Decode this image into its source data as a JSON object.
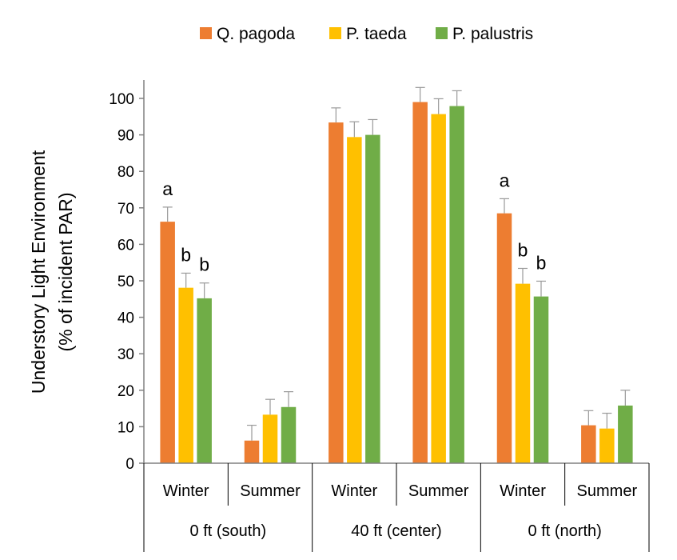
{
  "chart_data": {
    "type": "bar",
    "ylabel_line1": "Understory Light Environment",
    "ylabel_line2": "(% of incident PAR)",
    "ylim": [
      0,
      105
    ],
    "yticks": [
      0,
      10,
      20,
      30,
      40,
      50,
      60,
      70,
      80,
      90,
      100
    ],
    "grid": false,
    "legend_position": "top",
    "groups": [
      {
        "label": "0 ft (south)",
        "seasons": [
          "Winter",
          "Summer"
        ]
      },
      {
        "label": "40 ft (center)",
        "seasons": [
          "Winter",
          "Summer"
        ]
      },
      {
        "label": "0 ft (north)",
        "seasons": [
          "Winter",
          "Summer"
        ]
      }
    ],
    "series": [
      {
        "name": "Q. pagoda",
        "color": "#ED7D31",
        "values": [
          66.2,
          6.2,
          93.4,
          99.0,
          68.5,
          10.4
        ],
        "errors": [
          4.0,
          4.2,
          4.0,
          4.0,
          4.0,
          4.0
        ]
      },
      {
        "name": "P. taeda",
        "color": "#FFC000",
        "values": [
          48.1,
          13.3,
          89.4,
          95.7,
          49.2,
          9.5
        ],
        "errors": [
          4.0,
          4.2,
          4.2,
          4.2,
          4.2,
          4.2
        ]
      },
      {
        "name": "P. palustris",
        "color": "#70AD47",
        "values": [
          45.2,
          15.4,
          90.0,
          97.9,
          45.7,
          15.8
        ],
        "errors": [
          4.2,
          4.2,
          4.2,
          4.2,
          4.2,
          4.2
        ]
      }
    ],
    "significance_labels": [
      [
        "a",
        "",
        "",
        "",
        "a",
        ""
      ],
      [
        "b",
        "",
        "",
        "",
        "b",
        ""
      ],
      [
        "b",
        "",
        "",
        "",
        "b",
        ""
      ]
    ]
  }
}
